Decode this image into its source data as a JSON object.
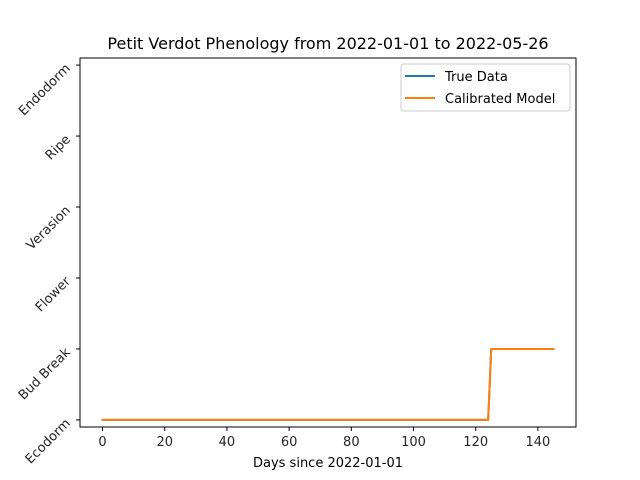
{
  "chart_data": {
    "type": "line",
    "title": "Petit Verdot Phenology from 2022-01-01 to 2022-05-26",
    "xlabel": "Days since 2022-01-01",
    "ylabel": "",
    "xlim": [
      -7.25,
      152.25
    ],
    "ylim": [
      -0.1,
      5.1
    ],
    "xticks": [
      0,
      20,
      40,
      60,
      80,
      100,
      120,
      140
    ],
    "ytick_labels": [
      "Ecodorm",
      "Bud Break",
      "Flower",
      "Verasion",
      "Ripe",
      "Endodorm"
    ],
    "ytick_values": [
      0,
      1,
      2,
      3,
      4,
      5
    ],
    "grid": false,
    "legend_position": "top-right",
    "series": [
      {
        "name": "True Data",
        "color": "#1f77b4",
        "x": [
          0,
          124,
          125,
          145
        ],
        "y": [
          0,
          0,
          1,
          1
        ]
      },
      {
        "name": "Calibrated Model",
        "color": "#ff7f0e",
        "x": [
          0,
          124,
          125,
          145
        ],
        "y": [
          0,
          0,
          1,
          1
        ]
      }
    ]
  }
}
